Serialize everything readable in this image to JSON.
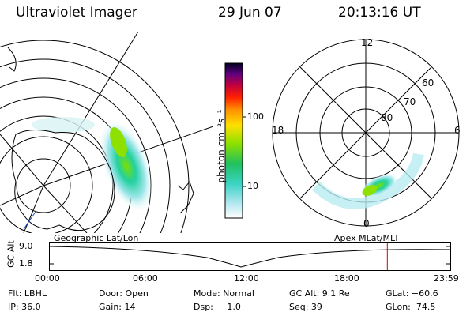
{
  "header": {
    "instrument": "Ultraviolet Imager",
    "date": "29 Jun 07",
    "time": "20:13:16 UT"
  },
  "colorbar": {
    "unit_label": "photon cm⁻²s⁻¹",
    "ticks": [
      "100",
      "10"
    ]
  },
  "polar_plot": {
    "mlt_labels": {
      "top": "12",
      "left": "18",
      "right": "6",
      "bottom": "0"
    },
    "lat_labels": [
      "60",
      "70",
      "80"
    ]
  },
  "projections": {
    "left": "Geographic Lat/Lon",
    "right": "Apex  MLat/MLT"
  },
  "timeline": {
    "ylabel": "GC Alt",
    "yticks": [
      "9.0",
      "1.8"
    ],
    "xticks": [
      "00:00",
      "06:00",
      "12:00",
      "18:00",
      "23:59"
    ],
    "current_marker_hours": 20.22
  },
  "info": {
    "filter": "Flt: LBHL",
    "ip": "IP: 36.0",
    "door": "Door: Open",
    "gain": "Gain: 14",
    "mode": "Mode: Normal",
    "dsp": "Dsp:     1.0",
    "gc_alt": "GC Alt: 9.1 Re",
    "seq": "Seq: 39",
    "glat": "GLat: −60.6",
    "glon": "GLon:  74.5"
  },
  "colors": {
    "marker": "#d40000",
    "line": "#000000"
  }
}
